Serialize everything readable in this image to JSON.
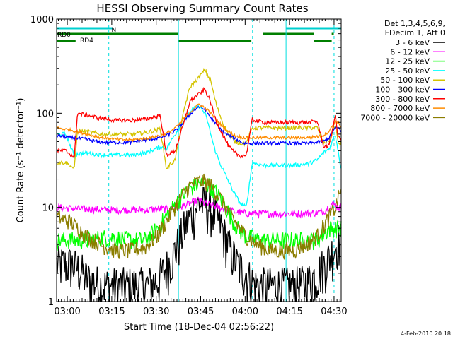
{
  "chart_data": {
    "type": "line",
    "title": "HESSI Observing Summary Count Rates",
    "xlabel": "Start Time (18-Dec-04 02:56:22)",
    "ylabel": "Count Rate (s⁻¹ detector⁻¹)",
    "ylim": [
      1,
      1000
    ],
    "yscale": "log",
    "xlim": [
      0,
      96
    ],
    "x_unit": "minutes after 02:56:22",
    "x_ticks": [
      {
        "label": "03:00",
        "x": 3.6
      },
      {
        "label": "03:15",
        "x": 18.6
      },
      {
        "label": "03:30",
        "x": 33.6
      },
      {
        "label": "03:45",
        "x": 48.6
      },
      {
        "label": "04:00",
        "x": 63.6
      },
      {
        "label": "04:15",
        "x": 78.6
      },
      {
        "label": "04:30",
        "x": 93.6
      }
    ],
    "y_ticks": [
      {
        "label": "1",
        "y": 1
      },
      {
        "label": "10",
        "y": 10
      },
      {
        "label": "100",
        "y": 100
      },
      {
        "label": "1000",
        "y": 1000
      }
    ],
    "grid": false,
    "legend_position": "right",
    "legend_header": [
      "Det 1,3,4,5,6,9,",
      "FDecim 1, Att 0"
    ],
    "flag_labels": [
      "RD0",
      "RD4",
      "N"
    ],
    "footer_date": "4-Feb-2010 20:18",
    "series": [
      {
        "name": "3 - 6 keV",
        "color": "#000000",
        "noise": 0.55,
        "x": [
          0,
          2,
          5,
          8,
          10,
          15,
          20,
          25,
          30,
          34,
          37,
          40,
          43,
          46,
          48,
          50,
          52,
          55,
          58,
          61,
          64,
          67,
          70,
          73,
          76,
          80,
          84,
          88,
          92,
          95,
          96
        ],
        "y": [
          2.5,
          2.5,
          2.5,
          2.2,
          1.8,
          1.5,
          1.5,
          1.5,
          1.5,
          1.7,
          2.3,
          3.5,
          6,
          9,
          11,
          11,
          10,
          7,
          4,
          2.5,
          2,
          1.5,
          1.5,
          1.5,
          1.5,
          1.5,
          1.6,
          2,
          3,
          4.5,
          4.5
        ]
      },
      {
        "name": "6 - 12 keV",
        "color": "#ff00ff",
        "noise": 0.09,
        "x": [
          0,
          10,
          20,
          30,
          40,
          45,
          48,
          50,
          55,
          60,
          65,
          70,
          75,
          80,
          85,
          90,
          93,
          95,
          96
        ],
        "y": [
          10,
          9.6,
          9.4,
          9.4,
          9.8,
          11,
          12,
          11,
          10,
          9,
          8.6,
          8.6,
          8.6,
          8.6,
          8.6,
          9,
          11,
          10,
          10
        ]
      },
      {
        "name": "12 - 25 keV",
        "color": "#00ff00",
        "noise": 0.22,
        "x": [
          0,
          5,
          10,
          15,
          20,
          25,
          30,
          34,
          38,
          42,
          45,
          48,
          50,
          52,
          55,
          58,
          61,
          64,
          68,
          72,
          76,
          80,
          84,
          88,
          92,
          94,
          96
        ],
        "y": [
          4.5,
          4.5,
          4.5,
          4.8,
          4.8,
          4.5,
          4.5,
          6,
          9,
          13,
          16,
          18,
          18,
          17,
          13,
          9,
          6,
          5,
          4.5,
          4.5,
          4.5,
          4.5,
          4.5,
          4.5,
          6,
          6,
          6
        ]
      },
      {
        "name": "25 - 50 keV",
        "color": "#00ffff",
        "noise": 0.05,
        "x": [
          0,
          3,
          6,
          7,
          10,
          15,
          20,
          25,
          30,
          35,
          37,
          40,
          42,
          44,
          46,
          48,
          50,
          51,
          52,
          53,
          55,
          57,
          60,
          62,
          64,
          66,
          70,
          75,
          80,
          85,
          88,
          90,
          92,
          94,
          95,
          96
        ],
        "y": [
          60,
          60,
          35,
          37,
          38,
          36,
          36,
          36,
          38,
          44,
          42,
          60,
          75,
          95,
          110,
          120,
          100,
          80,
          60,
          45,
          30,
          22,
          14,
          11,
          10,
          30,
          28,
          28,
          28,
          29,
          32,
          38,
          42,
          60,
          40,
          25
        ]
      },
      {
        "name": "50 - 100 keV",
        "color": "#d4c400",
        "noise": 0.05,
        "x": [
          0,
          3,
          6,
          7,
          10,
          15,
          20,
          25,
          30,
          35,
          37,
          40,
          43,
          45,
          48,
          50,
          52,
          53,
          54,
          56,
          58,
          60,
          62,
          64,
          66,
          70,
          75,
          80,
          85,
          88,
          90,
          92,
          94,
          95,
          96
        ],
        "y": [
          30,
          30,
          26,
          65,
          64,
          60,
          60,
          60,
          62,
          68,
          26,
          32,
          110,
          190,
          240,
          290,
          220,
          160,
          120,
          80,
          60,
          50,
          48,
          48,
          70,
          70,
          70,
          70,
          70,
          70,
          48,
          52,
          75,
          48,
          48
        ]
      },
      {
        "name": "100 - 300 keV",
        "color": "#0000ff",
        "noise": 0.04,
        "x": [
          0,
          5,
          10,
          15,
          20,
          25,
          30,
          35,
          38,
          40,
          42,
          44,
          46,
          48,
          50,
          52,
          54,
          56,
          58,
          60,
          63,
          66,
          70,
          75,
          80,
          85,
          90,
          92,
          94,
          95,
          96
        ],
        "y": [
          58,
          55,
          53,
          49,
          49,
          49,
          52,
          55,
          60,
          65,
          75,
          90,
          105,
          118,
          110,
          90,
          75,
          64,
          58,
          54,
          48,
          48,
          48,
          48,
          48,
          48,
          50,
          55,
          70,
          70,
          65
        ]
      },
      {
        "name": "300 - 800 keV",
        "color": "#ff0000",
        "noise": 0.05,
        "x": [
          0,
          3,
          6,
          7,
          10,
          15,
          20,
          25,
          30,
          35,
          37,
          40,
          43,
          45,
          48,
          50,
          52,
          53,
          54,
          56,
          58,
          60,
          62,
          64,
          66,
          70,
          75,
          80,
          85,
          88,
          90,
          92,
          94,
          95,
          96
        ],
        "y": [
          40,
          40,
          34,
          100,
          96,
          88,
          84,
          84,
          86,
          95,
          36,
          40,
          80,
          135,
          160,
          180,
          130,
          100,
          80,
          60,
          45,
          38,
          35,
          36,
          85,
          80,
          80,
          80,
          80,
          82,
          45,
          45,
          95,
          55,
          55
        ]
      },
      {
        "name": "800 - 7000 keV",
        "color": "#ff8c00",
        "noise": 0.035,
        "x": [
          0,
          5,
          10,
          15,
          20,
          25,
          30,
          35,
          38,
          40,
          42,
          44,
          46,
          48,
          50,
          52,
          54,
          56,
          58,
          60,
          63,
          66,
          70,
          75,
          80,
          85,
          90,
          92,
          94,
          95,
          96
        ],
        "y": [
          70,
          66,
          60,
          55,
          53,
          52,
          54,
          58,
          63,
          70,
          80,
          95,
          110,
          125,
          115,
          100,
          85,
          72,
          64,
          58,
          55,
          55,
          55,
          55,
          55,
          55,
          58,
          65,
          82,
          80,
          72
        ]
      },
      {
        "name": "7000 - 20000 keV",
        "color": "#8b7d00",
        "noise": 0.2,
        "x": [
          0,
          5,
          10,
          15,
          20,
          25,
          30,
          34,
          38,
          42,
          45,
          48,
          50,
          52,
          55,
          58,
          61,
          64,
          68,
          72,
          76,
          80,
          84,
          88,
          92,
          94,
          96
        ],
        "y": [
          8,
          7,
          5,
          4,
          3.5,
          3.5,
          3.8,
          5,
          8,
          13,
          17,
          19,
          19,
          17,
          13,
          9,
          6.5,
          5,
          4,
          3.5,
          3.5,
          3.5,
          4,
          5,
          8,
          10,
          16
        ]
      }
    ],
    "attenuator_bars": [
      {
        "label": "RD0",
        "color": "#00d0d0",
        "row": 1,
        "segments": [
          [
            0,
            19
          ]
        ]
      },
      {
        "label": "N",
        "color": "#00d0d0",
        "row": 1,
        "segments": [
          [
            77.4,
            96
          ]
        ]
      },
      {
        "label": "",
        "color": "#007f00",
        "row": 2,
        "segments": [
          [
            0.2,
            41.1
          ],
          [
            69.5,
            86.7
          ],
          [
            92.8,
            93.5
          ]
        ]
      },
      {
        "label": "RD4",
        "color": "#007f00",
        "row": 3,
        "segments": [
          [
            0,
            6.4
          ],
          [
            41.1,
            65.7
          ],
          [
            86.7,
            92.8
          ]
        ]
      }
    ],
    "vlines_solid": [
      0,
      41.1,
      77.4
    ],
    "vlines_dashed": [
      17.6,
      66.1,
      93.6
    ]
  }
}
